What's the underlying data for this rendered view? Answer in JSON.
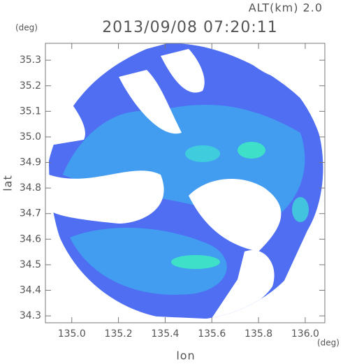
{
  "chart_data": {
    "type": "map",
    "title": "2013/09/08 07:20:11",
    "subtitle": "ALT(km) 2.0",
    "x_label": "lon",
    "x_unit": "(deg)",
    "y_label": "lat",
    "y_unit": "(deg)",
    "xlim": [
      134.887,
      136.084
    ],
    "ylim": [
      34.273,
      35.366
    ],
    "xticks": [
      {
        "value": 135,
        "label": "135.0"
      },
      135.2,
      135.4,
      135.6,
      135.8,
      {
        "value": 136,
        "label": "136.0"
      }
    ],
    "yticks": [
      34.3,
      34.4,
      34.5,
      34.6,
      34.7,
      34.8,
      34.9,
      {
        "value": 35,
        "label": "35.0"
      },
      35.1,
      35.2,
      35.3
    ]
  }
}
